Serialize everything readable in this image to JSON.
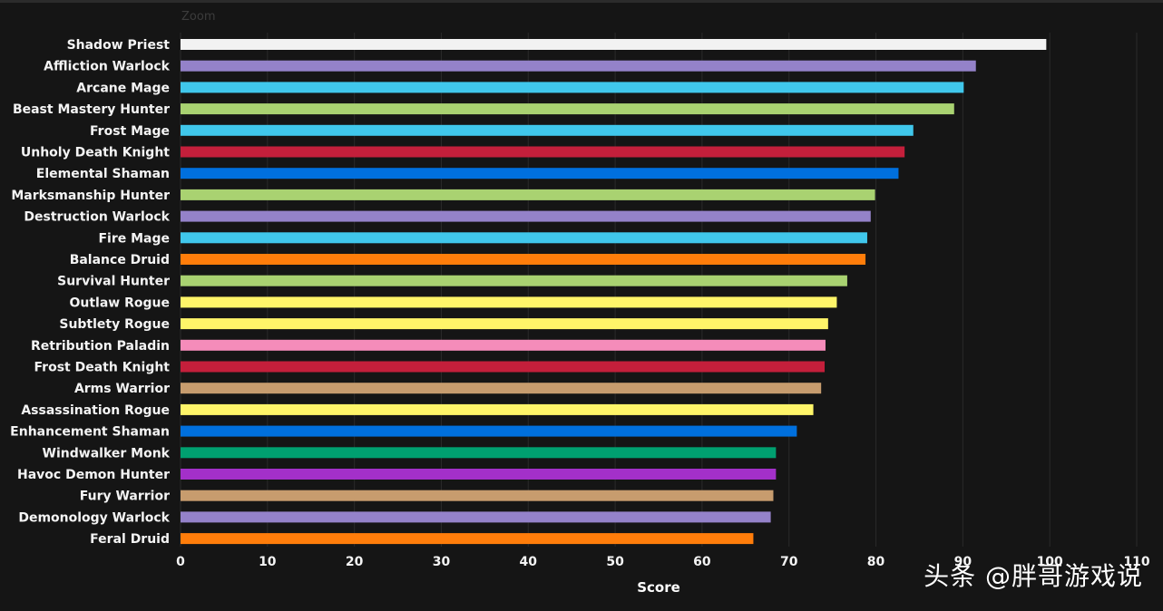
{
  "watermark": "头条 @胖哥游戏说",
  "zoom_label": "Zoom",
  "chart_data": {
    "type": "bar",
    "orientation": "horizontal",
    "title": "",
    "xlabel": "Score",
    "ylabel": "",
    "xlim": [
      0,
      110
    ],
    "xticks": [
      0,
      10,
      20,
      30,
      40,
      50,
      60,
      70,
      80,
      90,
      100,
      110
    ],
    "grid": true,
    "categories": [
      "Shadow Priest",
      "Affliction Warlock",
      "Arcane Mage",
      "Beast Mastery Hunter",
      "Frost Mage",
      "Unholy Death Knight",
      "Elemental Shaman",
      "Marksmanship Hunter",
      "Destruction Warlock",
      "Fire Mage",
      "Balance Druid",
      "Survival Hunter",
      "Outlaw Rogue",
      "Subtlety Rogue",
      "Retribution Paladin",
      "Frost Death Knight",
      "Arms Warrior",
      "Assassination Rogue",
      "Enhancement Shaman",
      "Windwalker Monk",
      "Havoc Demon Hunter",
      "Fury Warrior",
      "Demonology Warlock",
      "Feral Druid"
    ],
    "values": [
      99.6,
      91.5,
      90.1,
      89.0,
      84.3,
      83.3,
      82.6,
      79.9,
      79.4,
      79.0,
      78.8,
      76.7,
      75.5,
      74.5,
      74.2,
      74.1,
      73.7,
      72.8,
      70.9,
      68.5,
      68.5,
      68.2,
      67.9,
      65.9
    ],
    "colors": [
      "#f2f2f2",
      "#9482c9",
      "#40c7eb",
      "#a9d271",
      "#40c7eb",
      "#c41f3b",
      "#0070de",
      "#a9d271",
      "#9482c9",
      "#40c7eb",
      "#ff7d0a",
      "#a9d271",
      "#fff569",
      "#fff569",
      "#f58cba",
      "#c41f3b",
      "#c79c6e",
      "#fff569",
      "#0070de",
      "#00a070",
      "#a330c9",
      "#c79c6e",
      "#9482c9",
      "#ff7d0a"
    ]
  }
}
